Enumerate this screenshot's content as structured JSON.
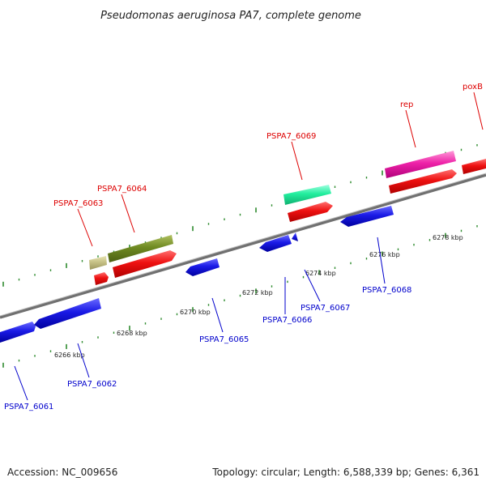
{
  "title": "Pseudomonas aeruginosa PA7, complete genome",
  "footer": {
    "accession": "Accession: NC_009656",
    "summary": "Topology: circular; Length: 6,588,339 bp; Genes: 6,361"
  },
  "colors": {
    "backbone": "#8c8c8c",
    "tick": "#2e8b2e",
    "forward_label": "#dd0000",
    "reverse_label": "#0000cc",
    "gene_red": "#ee1111",
    "gene_blue": "#1a1ae6"
  },
  "tick_labels": [
    "6266 kbp",
    "6268 kbp",
    "6270 kbp",
    "6272 kbp",
    "6274 kbp",
    "6276 kbp",
    "6278 kbp"
  ],
  "forward_labels": [
    "PSPA7_6063",
    "PSPA7_6064",
    "PSPA7_6069",
    "rep",
    "poxB"
  ],
  "reverse_labels": [
    "PSPA7_6061",
    "PSPA7_6062",
    "PSPA7_6065",
    "PSPA7_6066",
    "PSPA7_6067",
    "PSPA7_6068"
  ]
}
